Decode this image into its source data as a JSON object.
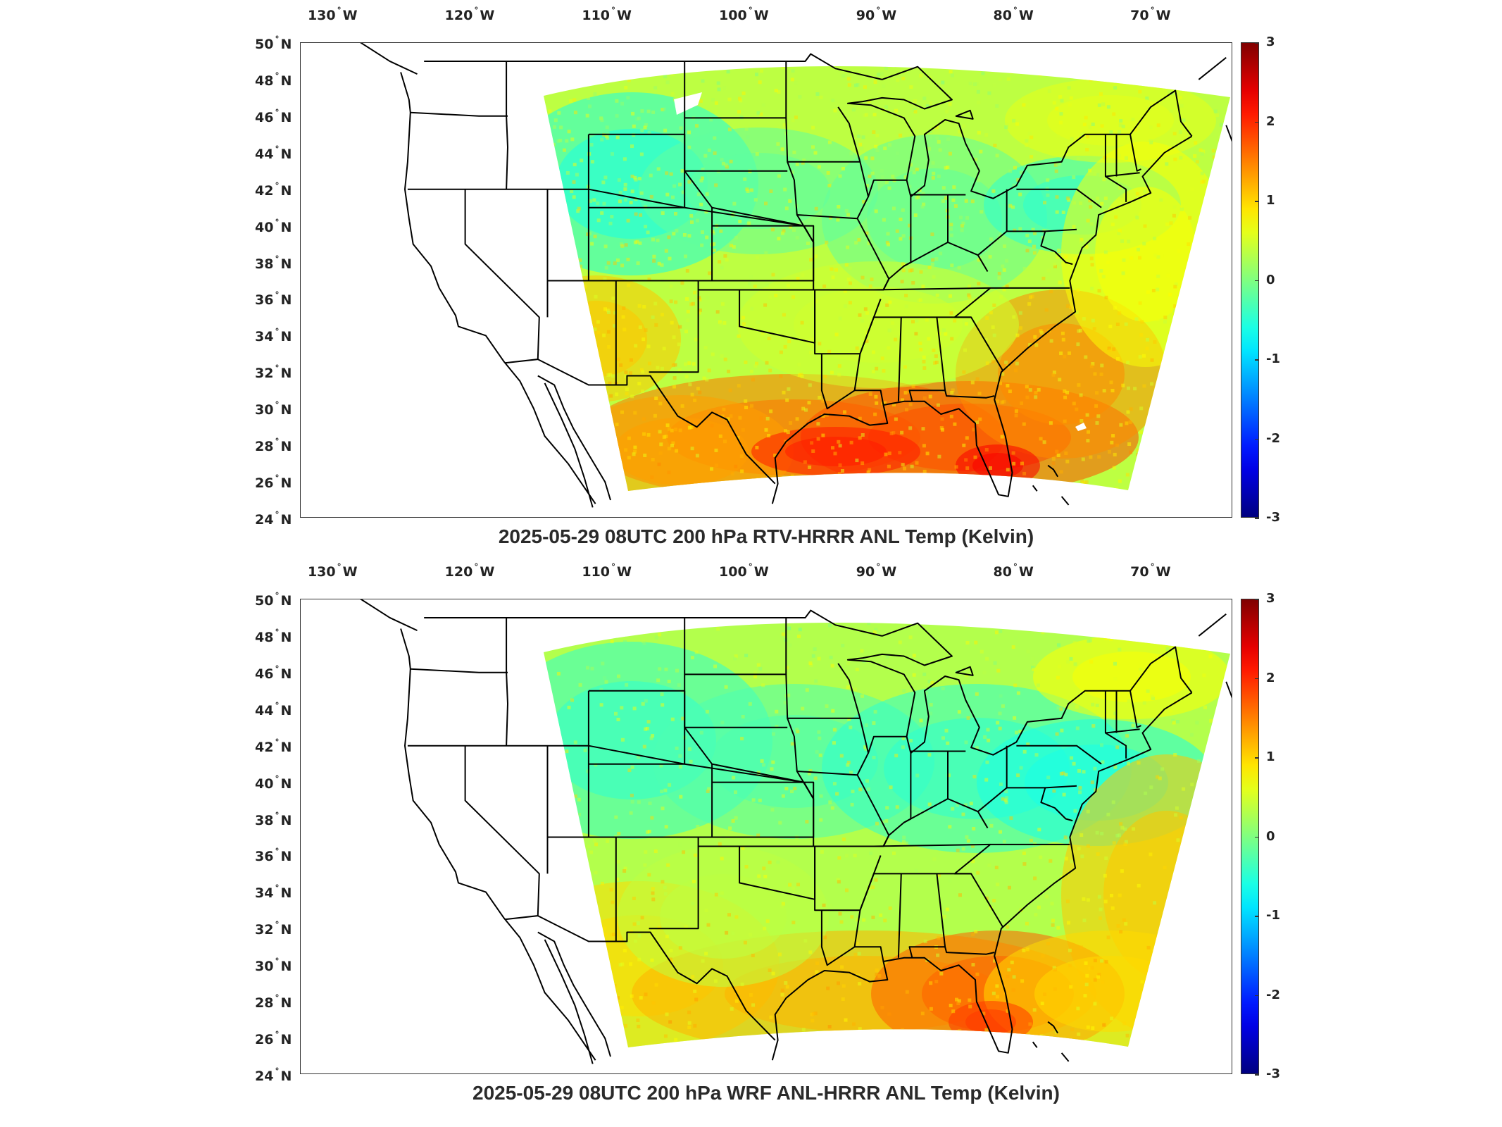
{
  "panels": [
    {
      "caption": "2025-05-29 08UTC 200 hPa RTV-HRRR ANL Temp (Kelvin)",
      "variant": "rtv"
    },
    {
      "caption": "2025-05-29 08UTC 200 hPa WRF ANL-HRRR ANL Temp (Kelvin)",
      "variant": "wrf"
    }
  ],
  "lon_ticks": [
    {
      "deg": "130",
      "dir": "W"
    },
    {
      "deg": "120",
      "dir": "W"
    },
    {
      "deg": "110",
      "dir": "W"
    },
    {
      "deg": "100",
      "dir": "W"
    },
    {
      "deg": "90",
      "dir": "W"
    },
    {
      "deg": "80",
      "dir": "W"
    },
    {
      "deg": "70",
      "dir": "W"
    }
  ],
  "lat_ticks": [
    {
      "deg": "50",
      "dir": "N"
    },
    {
      "deg": "48",
      "dir": "N"
    },
    {
      "deg": "46",
      "dir": "N"
    },
    {
      "deg": "44",
      "dir": "N"
    },
    {
      "deg": "42",
      "dir": "N"
    },
    {
      "deg": "40",
      "dir": "N"
    },
    {
      "deg": "38",
      "dir": "N"
    },
    {
      "deg": "36",
      "dir": "N"
    },
    {
      "deg": "34",
      "dir": "N"
    },
    {
      "deg": "32",
      "dir": "N"
    },
    {
      "deg": "30",
      "dir": "N"
    },
    {
      "deg": "28",
      "dir": "N"
    },
    {
      "deg": "26",
      "dir": "N"
    },
    {
      "deg": "24",
      "dir": "N"
    }
  ],
  "colorbar": {
    "ticks": [
      "3",
      "2",
      "1",
      "0",
      "-1",
      "-2",
      "-3"
    ],
    "colormap": "jet",
    "range": [
      -3,
      3
    ]
  },
  "colors": {
    "outline": "#000000",
    "frame": "#333333"
  }
}
